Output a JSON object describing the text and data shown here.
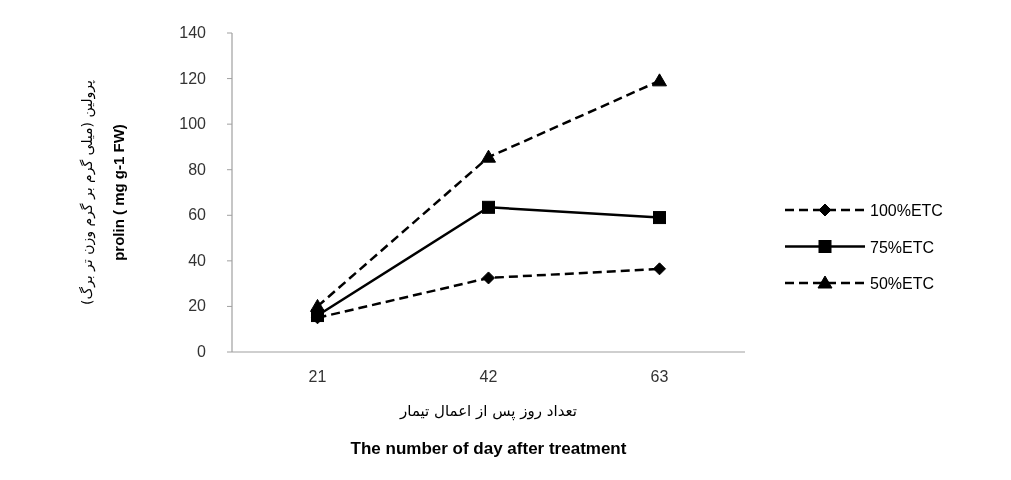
{
  "chart_data": {
    "type": "line",
    "categories": [
      "21",
      "42",
      "63"
    ],
    "xlabel": "The number of day after treatment",
    "ylabel": "prolin ( mg g-1 FW)",
    "annotations": [
      "تعداد روز پس از اعمال تیمار",
      "پرولین (میلی گرم بر گرم وزن تر برگ)"
    ],
    "ylim": [
      0,
      140
    ],
    "yticks": [
      0,
      20,
      40,
      60,
      80,
      100,
      120,
      140
    ],
    "grid": false,
    "legend": "right",
    "series": [
      {
        "name": "100%ETC",
        "color": "#000000",
        "values": [
          15,
          32.5,
          36.5
        ],
        "marker": "diamond",
        "line_style": "dashed"
      },
      {
        "name": "75%ETC",
        "color": "#000000",
        "values": [
          16,
          63.5,
          59
        ],
        "marker": "square",
        "line_style": "solid"
      },
      {
        "name": "50%ETC",
        "color": "#000000",
        "values": [
          20,
          85.5,
          119
        ],
        "marker": "triangle",
        "line_style": "dashed"
      }
    ]
  }
}
